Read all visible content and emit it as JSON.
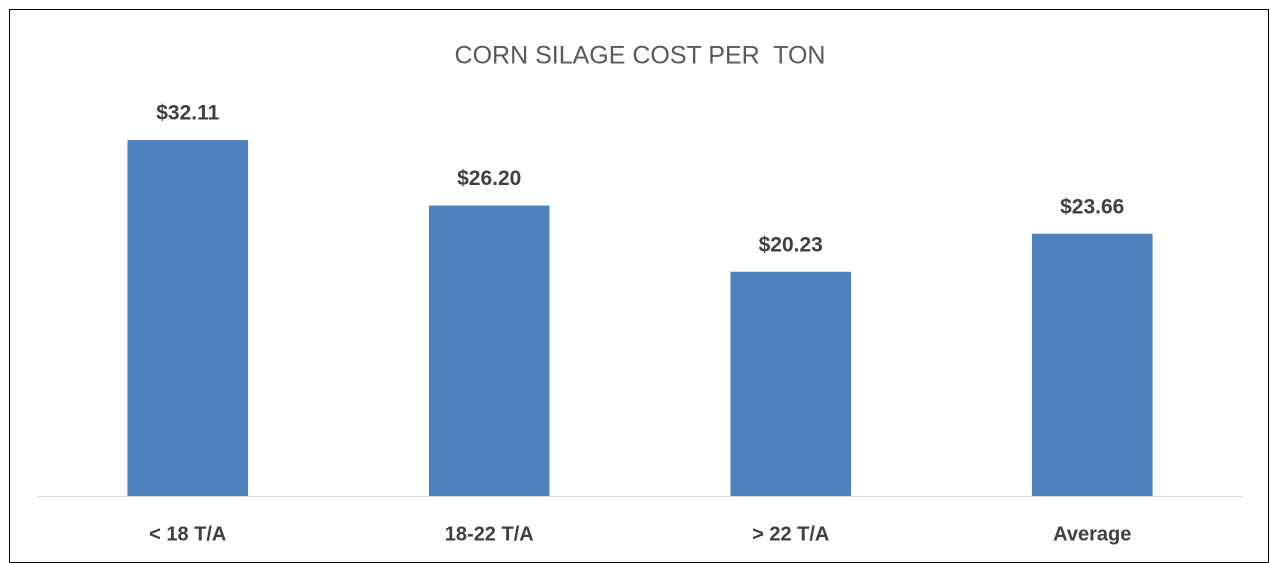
{
  "chart_data": {
    "type": "bar",
    "title": "CORN SILAGE COST PER  TON",
    "categories": [
      "< 18 T/A",
      "18-22 T/A",
      "> 22 T/A",
      "Average"
    ],
    "values": [
      32.11,
      26.2,
      20.23,
      23.66
    ],
    "value_labels": [
      "$32.11",
      "$26.20",
      "$20.23",
      "$23.66"
    ],
    "color": "#4f81bd",
    "ylim": [
      0,
      35
    ]
  }
}
